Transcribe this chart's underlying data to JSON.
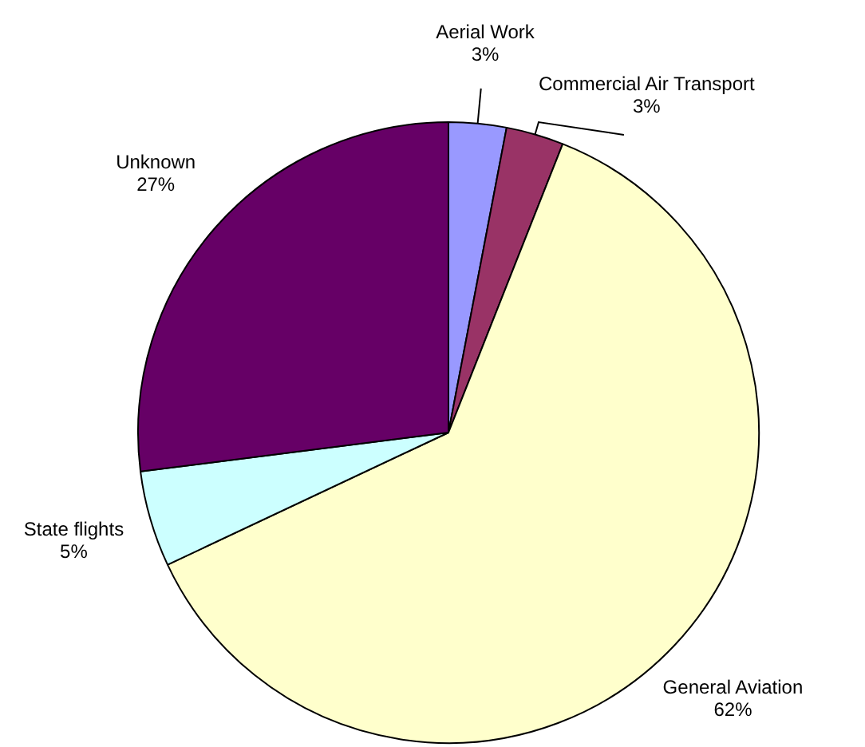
{
  "chart_data": {
    "type": "pie",
    "categories": [
      "Aerial Work",
      "Commercial Air Transport",
      "General Aviation",
      "State flights",
      "Unknown"
    ],
    "values": [
      3,
      3,
      62,
      5,
      27
    ],
    "value_labels": [
      "3%",
      "3%",
      "62%",
      "5%",
      "27%"
    ],
    "colors": [
      "#9999ff",
      "#993366",
      "#ffffcc",
      "#ccffff",
      "#660066"
    ],
    "legend": false
  }
}
